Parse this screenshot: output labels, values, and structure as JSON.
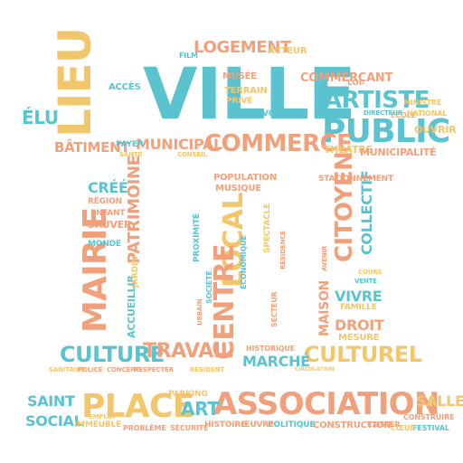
{
  "words": {
    "ville": "VILLE",
    "lieu": "LIEU",
    "public": "PUBLIC",
    "commerce": "COMMERCE",
    "artiste": "ARTISTE",
    "logement": "LOGEMENT",
    "municipal": "MUNICIPAL",
    "batiment": "BÂTIMENT",
    "elu": "ÉLU",
    "commercant": "COMMERÇANT",
    "theatre": "THÉÂTRE",
    "municipalite": "MUNICIPALITÉ",
    "ouvrir": "OUVRIR",
    "acteur": "ACTEUR",
    "cree": "CRÉÉ",
    "region": "RÉGION",
    "patrimoine": "PATRIMOINE",
    "mairie": "MAIRIE",
    "enfant": "ENFANT",
    "sauver": "SAUVER",
    "monde": "MONDE",
    "local": "LOCAL",
    "centre": "CENTRE",
    "population": "POPULATION",
    "musique": "MUSIQUE",
    "citoyen": "CITOYEN",
    "collectif": "COLLECTIF",
    "stationnement": "STATIONNEMENT",
    "vivre": "VIVRE",
    "famille": "FAMILLE",
    "maison": "MAISON",
    "droit": "DROIT",
    "mesure": "MESURE",
    "culture": "CULTURE",
    "travail": "TRAVAIL",
    "culturel": "CULTUREL",
    "marche": "MARCHÉ",
    "historique": "HISTORIQUE",
    "place": "PLACE",
    "association": "ASSOCIATION",
    "saint": "SAINT",
    "social": "SOCIAL",
    "art": "ART",
    "salle": "SALLE",
    "parking": "PARKING",
    "probleme": "PROBLÈME",
    "securite": "SÉCURITÉ",
    "histoire": "HISTOIRE",
    "politique": "POLITIQUE",
    "construction": "CONSTRUCTION",
    "festival": "FESTIVAL",
    "accueillir": "ACCUEILLIR",
    "jardin": "JARDIN",
    "construire": "CONSTRUIRE",
    "espace": "ESPACE",
    "projet": "PROJET",
    "terrain": "TERRAIN",
    "musee": "MUSÉE",
    "film": "FILM",
    "cinema": "CINÉMA",
    "territoire": "TERRITOIRE",
    "prive": "PRIVÉ",
    "voiture": "VOITURE",
    "ecole": "ÉCOLE",
    "national": "NATIONAL",
    "ministre": "MINISTRE",
    "payer": "PAYER",
    "sante": "SANTÉ",
    "conseil": "CONSEIL",
    "quartier": "QUARTIER",
    "urbain": "URBAIN",
    "societe": "SOCIÉTÉ",
    "proximite": "PROXIMITÉ",
    "spectacle": "SPECTACLE",
    "economique": "ÉCONOMIQUE",
    "residence": "RÉSIDENCE",
    "secteur": "SECTEUR",
    "ville_small": "VILLAGE",
    "cours": "COURS",
    "vente": "VENTE",
    "avenir": "AVENIR",
    "propriete": "PROPRIÉTÉ",
    "immeuble": "IMMEUBLE",
    "concert": "CONCERT",
    "sanitaire": "SANITAIRE",
    "police": "POLICE",
    "respecter": "RESPECTER",
    "resident": "RÉSIDENT",
    "circulation": "CIRCULATION",
    "acces": "ACCÈS",
    "oeuvre": "ŒUVRE",
    "coeur": "CŒUR",
    "exister": "EXISTER",
    "emploi": "EMPLOI",
    "loi": "LOI",
    "directeur": "DIRECTEUR"
  },
  "colors": {
    "teal": "#5bc3cf",
    "salmon": "#f0a07a",
    "yellow": "#f2c66b"
  }
}
